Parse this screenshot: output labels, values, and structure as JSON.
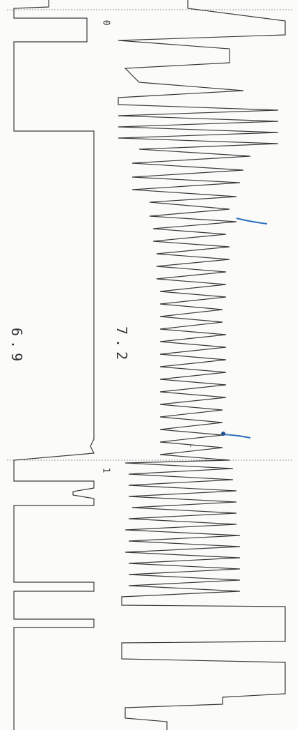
{
  "labels": {
    "trace_top": "6.9",
    "trace_bottom": "7.2",
    "marker_start": "0",
    "marker_mid": "1"
  },
  "colors": {
    "trace": "#3a3a3a",
    "annotation": "#2a6fbe",
    "dotted_line": "#9a9a9a"
  }
}
